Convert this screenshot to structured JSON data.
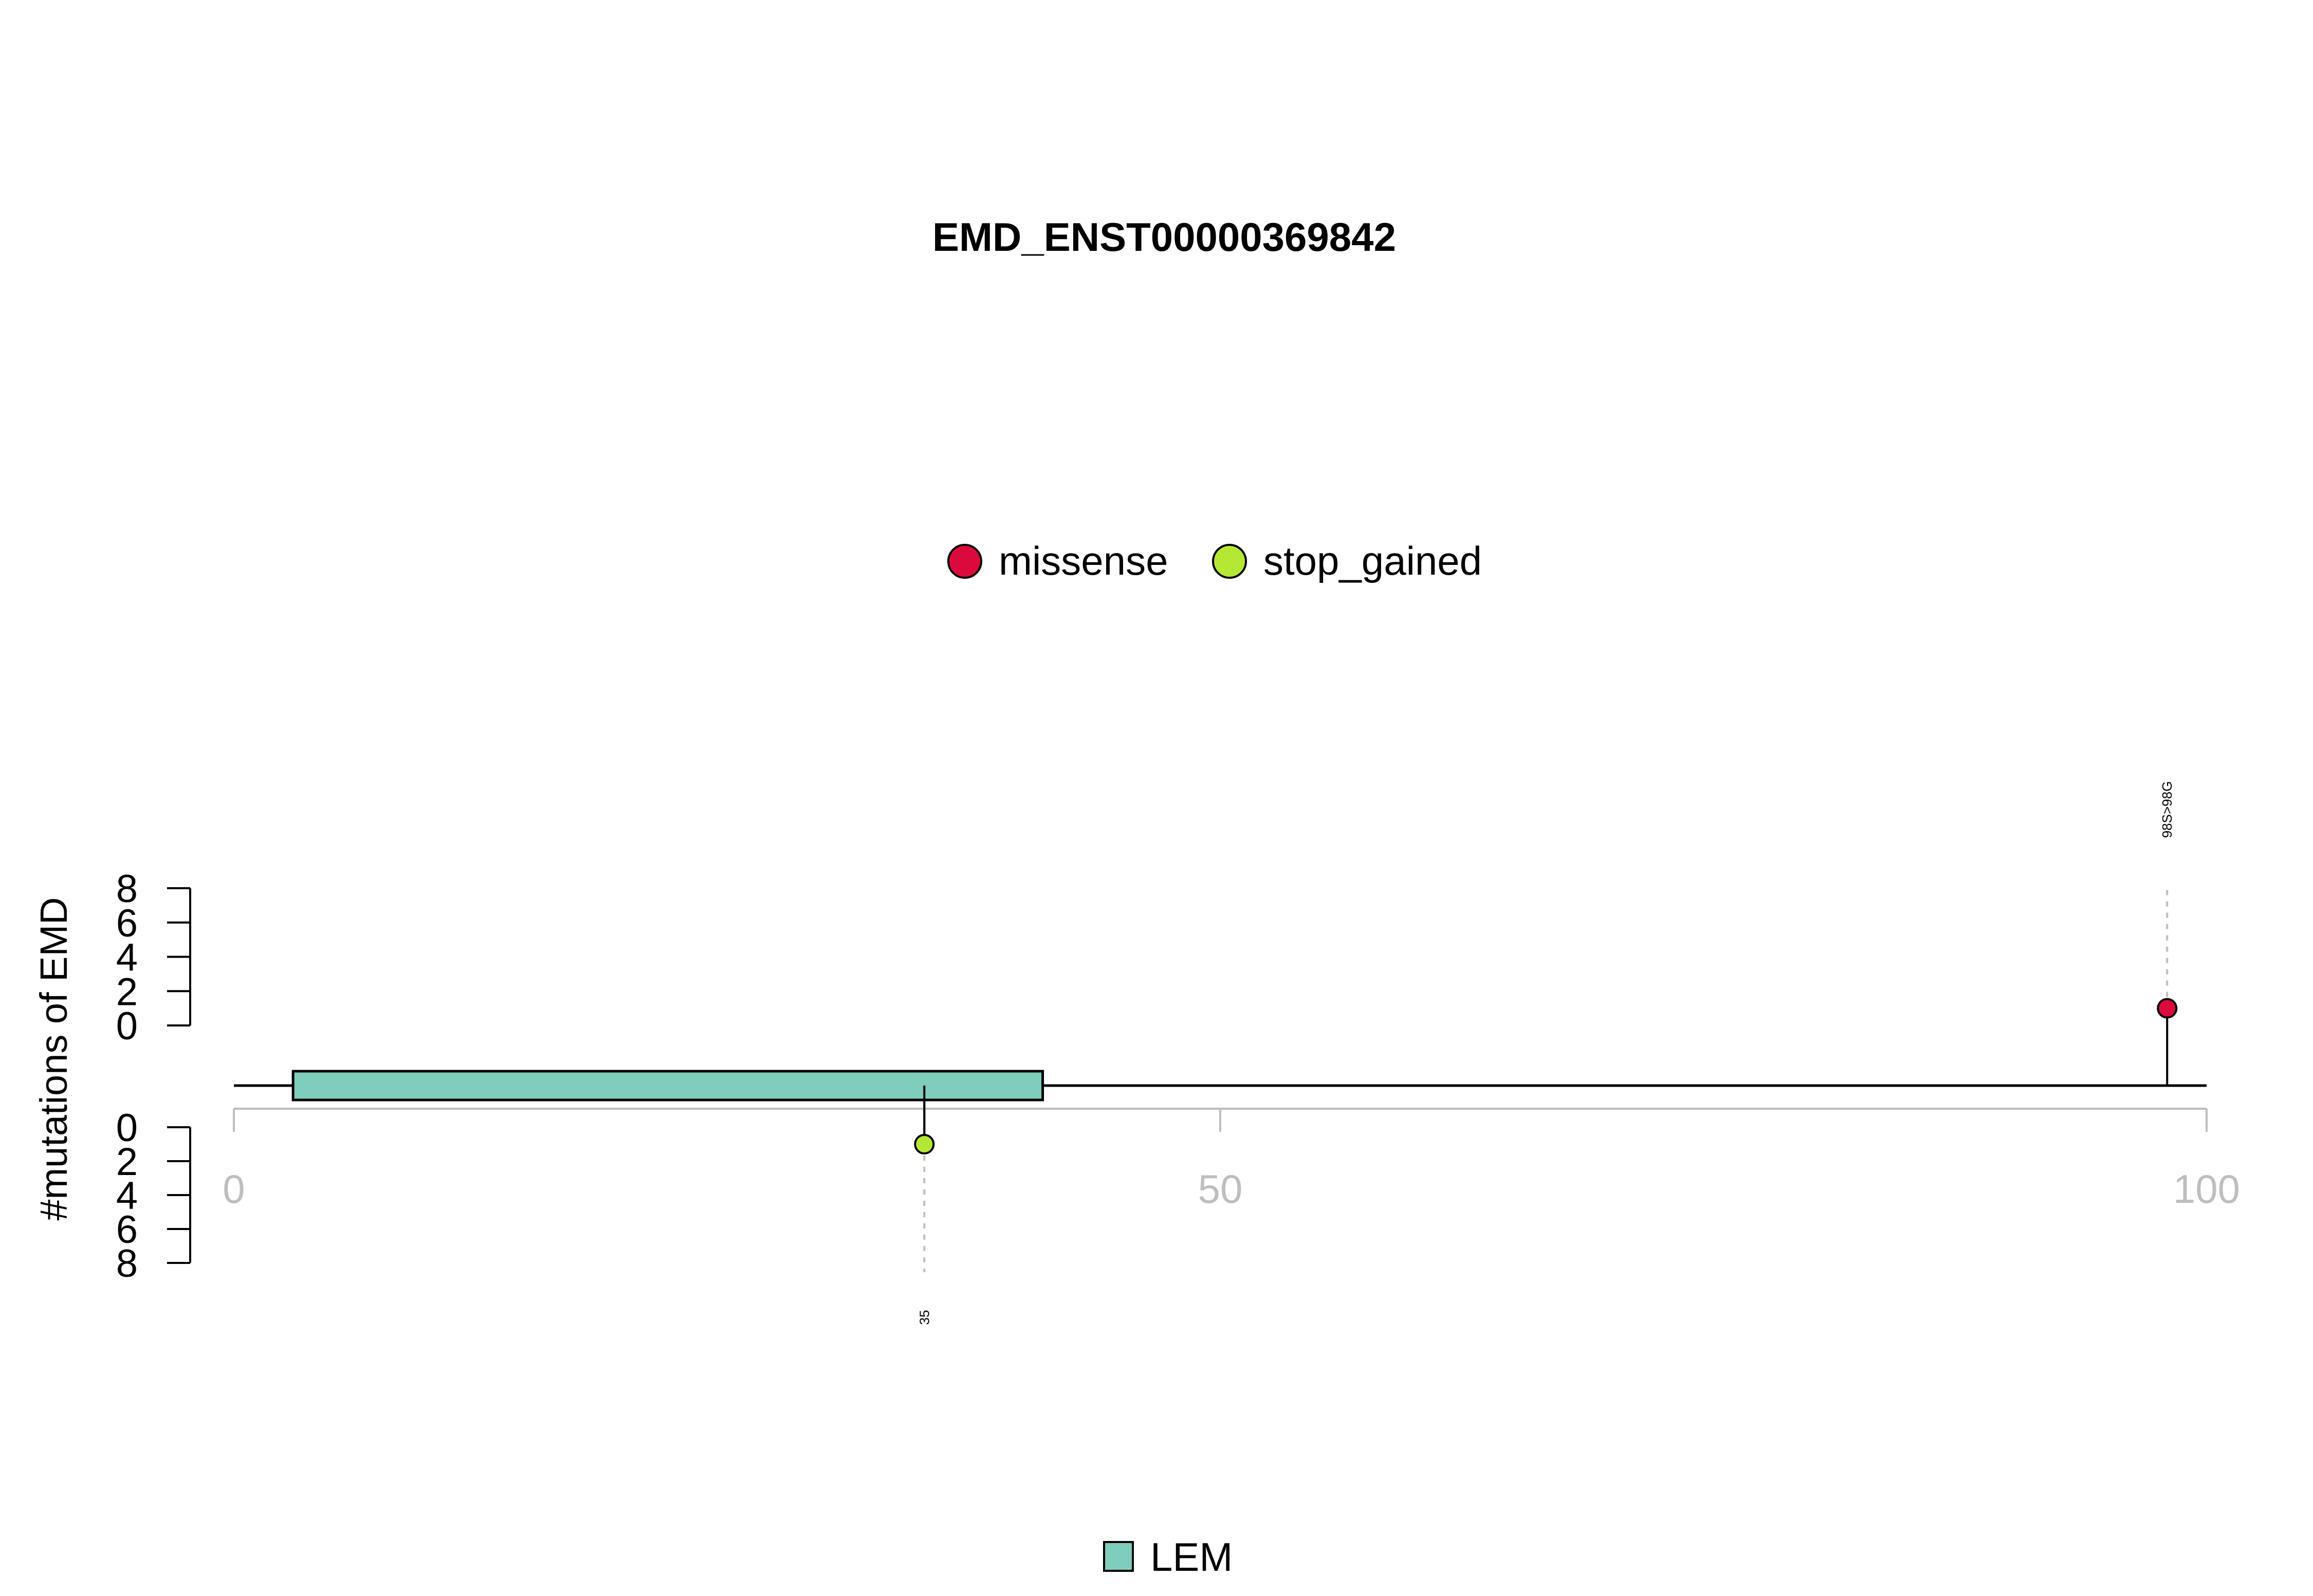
{
  "chart_data": {
    "type": "lollipop",
    "title": "EMD_ENST00000369842",
    "ylabel": "#mutations of EMD",
    "xlim": [
      0,
      100
    ],
    "x_ticks": [
      0,
      50,
      100
    ],
    "y_ticks_top": [
      0,
      2,
      4,
      6,
      8
    ],
    "y_ticks_bottom": [
      0,
      2,
      4,
      6,
      8
    ],
    "y_range": [
      0,
      8
    ],
    "mutation_legend": [
      {
        "name": "missense",
        "color": "#DC0A3C"
      },
      {
        "name": "stop_gained",
        "color": "#B5E835"
      }
    ],
    "domain_legend": [
      {
        "name": "LEM",
        "color": "#7FCDBB"
      }
    ],
    "domains": [
      {
        "name": "LEM",
        "start": 3,
        "end": 41,
        "color": "#7FCDBB"
      }
    ],
    "mutations": [
      {
        "position": 98,
        "count": 1,
        "type": "missense",
        "label": "98S>98G",
        "side": "top",
        "color": "#DC0A3C"
      },
      {
        "position": 35,
        "count": 1,
        "type": "stop_gained",
        "label": "35",
        "side": "bottom",
        "color": "#B5E835"
      }
    ]
  }
}
